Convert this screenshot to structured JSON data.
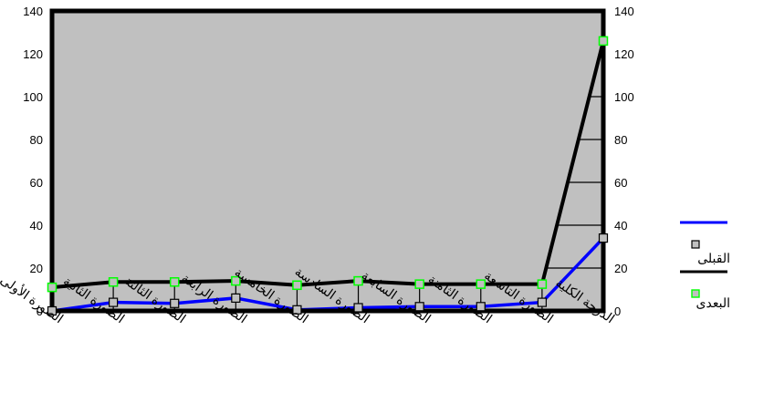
{
  "chart_data": {
    "type": "line",
    "categories": [
      "الصورة الأولى",
      "الصورة الثانية",
      "الصورة الثالثة",
      "الصورة الرابعة",
      "الصورة الخامسة",
      "الصورة السادسة",
      "الصورة السابعة",
      "الصورة الثامنة",
      "الصورة التاسعة",
      "الدرجة الكلية"
    ],
    "ylim": [
      0,
      140
    ],
    "yticks": [
      0,
      20,
      40,
      60,
      80,
      100,
      120,
      140
    ],
    "grid": true,
    "plot_background": "#c0c0c0",
    "legend_position": "right",
    "series": [
      {
        "name": "القبلى",
        "values": [
          0,
          4,
          3.5,
          6,
          0.5,
          1.5,
          2,
          2,
          4,
          34
        ],
        "color": "#0000ff",
        "marker": "#c0c0c0"
      },
      {
        "name": "البعدى",
        "values": [
          11,
          13.5,
          13.5,
          14,
          12,
          14,
          12.5,
          12.5,
          12.5,
          126
        ],
        "color": "#000000",
        "marker": "#00ff00"
      }
    ]
  }
}
